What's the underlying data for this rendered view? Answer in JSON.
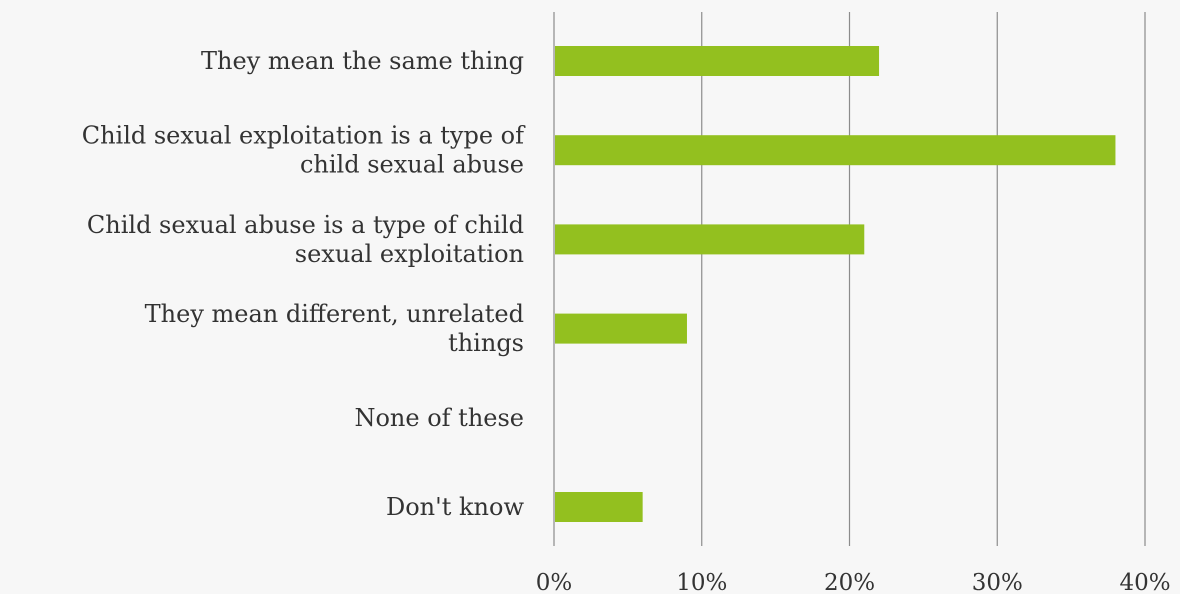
{
  "chart_data": {
    "type": "bar",
    "orientation": "horizontal",
    "categories": [
      [
        "They mean the same thing"
      ],
      [
        "Child sexual exploitation is a type of",
        "child sexual abuse"
      ],
      [
        "Child sexual abuse is a type of child",
        "sexual exploitation"
      ],
      [
        "They mean different, unrelated",
        "things"
      ],
      [
        "None of these"
      ],
      [
        "Don't know"
      ]
    ],
    "values": [
      22,
      38,
      21,
      9,
      0,
      6
    ],
    "xlim": [
      0,
      40
    ],
    "xticks": [
      0,
      10,
      20,
      30,
      40
    ],
    "xtick_labels": [
      "0%",
      "10%",
      "20%",
      "30%",
      "40%"
    ],
    "grid": "vertical",
    "legend": "none",
    "bar_color": "#93c01f",
    "grid_color": "#8c8c8c",
    "text_color": "#333333",
    "background": "#f7f7f7"
  }
}
